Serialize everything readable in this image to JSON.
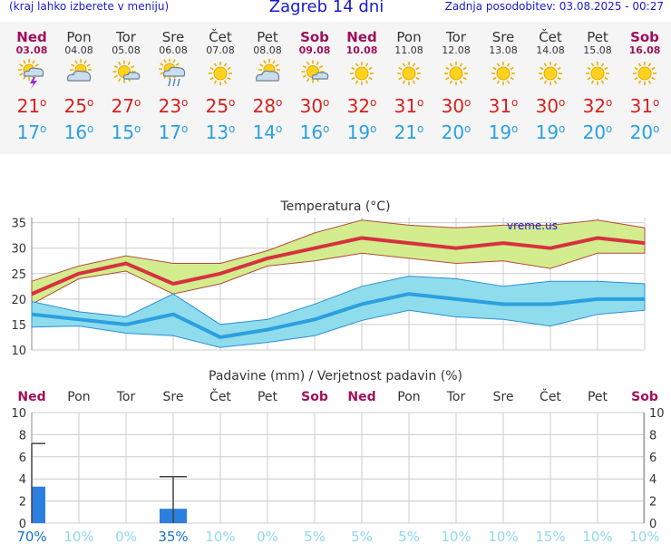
{
  "header": {
    "note": "(kraj lahko izberete v meniju)",
    "title": "Zagreb 14 dni",
    "updated": "Zadnja posodobitev: 03.08.2025 - 00:27"
  },
  "days": [
    {
      "name": "Ned",
      "date": "03.08",
      "weekend": true,
      "icon": "sun-cloud-thunder-icon",
      "tmax": "21",
      "tmin": "17"
    },
    {
      "name": "Pon",
      "date": "04.08",
      "weekend": false,
      "icon": "sun-cloud-icon",
      "tmax": "25",
      "tmin": "16"
    },
    {
      "name": "Tor",
      "date": "05.08",
      "weekend": false,
      "icon": "sun-small-cloud-icon",
      "tmax": "27",
      "tmin": "15"
    },
    {
      "name": "Sre",
      "date": "06.08",
      "weekend": false,
      "icon": "sun-cloud-rain-icon",
      "tmax": "23",
      "tmin": "17"
    },
    {
      "name": "Čet",
      "date": "07.08",
      "weekend": false,
      "icon": "sun-icon",
      "tmax": "25",
      "tmin": "13"
    },
    {
      "name": "Pet",
      "date": "08.08",
      "weekend": false,
      "icon": "sun-cloud-icon",
      "tmax": "28",
      "tmin": "14"
    },
    {
      "name": "Sob",
      "date": "09.08",
      "weekend": true,
      "icon": "sun-small-cloud-icon",
      "tmax": "30",
      "tmin": "16"
    },
    {
      "name": "Ned",
      "date": "10.08",
      "weekend": true,
      "icon": "sun-icon",
      "tmax": "32",
      "tmin": "19"
    },
    {
      "name": "Pon",
      "date": "11.08",
      "weekend": false,
      "icon": "sun-icon",
      "tmax": "31",
      "tmin": "21"
    },
    {
      "name": "Tor",
      "date": "12.08",
      "weekend": false,
      "icon": "sun-icon",
      "tmax": "30",
      "tmin": "20"
    },
    {
      "name": "Sre",
      "date": "13.08",
      "weekend": false,
      "icon": "sun-icon",
      "tmax": "31",
      "tmin": "19"
    },
    {
      "name": "Čet",
      "date": "14.08",
      "weekend": false,
      "icon": "sun-icon",
      "tmax": "30",
      "tmin": "19"
    },
    {
      "name": "Pet",
      "date": "15.08",
      "weekend": false,
      "icon": "sun-icon",
      "tmax": "32",
      "tmin": "20"
    },
    {
      "name": "Sob",
      "date": "16.08",
      "weekend": true,
      "icon": "sun-icon",
      "tmax": "31",
      "tmin": "20"
    }
  ],
  "colors": {
    "weekend": "#a0105a",
    "max_line": "#d6323f",
    "max_band": "#d3ec8e",
    "min_line": "#2b9fe0",
    "min_band": "#8fdcec",
    "precip_bar": "#2b7fe0",
    "prob_text": "#2aa0e0",
    "title_blue": "#1a1ad0"
  },
  "chart_data": [
    {
      "type": "line",
      "title": "Temperatura (°C)",
      "watermark": "vreme.us",
      "ylim": [
        10,
        36
      ],
      "yticks": [
        10,
        15,
        20,
        25,
        30,
        35
      ],
      "categories": [
        "03.08",
        "04.08",
        "05.08",
        "06.08",
        "07.08",
        "08.08",
        "09.08",
        "10.08",
        "11.08",
        "12.08",
        "13.08",
        "14.08",
        "15.08",
        "16.08"
      ],
      "series": [
        {
          "kind": "max",
          "values": [
            21,
            25,
            27,
            23,
            25,
            28,
            30,
            32,
            31,
            30,
            31,
            30,
            32,
            31
          ],
          "band_low": [
            19,
            24,
            25.5,
            21,
            23,
            26.5,
            27.5,
            29,
            28,
            27,
            27.5,
            26,
            29,
            29
          ],
          "band_high": [
            23.5,
            26.5,
            28.5,
            27,
            27,
            29.5,
            33,
            35.5,
            34.5,
            34,
            34.5,
            34.5,
            35.5,
            34
          ]
        },
        {
          "kind": "min",
          "values": [
            17,
            16,
            15,
            17,
            12.5,
            14,
            16,
            19,
            21,
            20,
            19,
            19,
            20,
            20
          ],
          "band_low": [
            14.5,
            14.7,
            13.3,
            12.8,
            10.5,
            11.5,
            12.8,
            15.8,
            17.8,
            16.5,
            16,
            14.7,
            17,
            17.8
          ],
          "band_high": [
            19.5,
            17.5,
            16.5,
            21,
            15,
            16,
            19,
            22.5,
            24.5,
            24,
            22.5,
            23.5,
            23.5,
            23
          ]
        }
      ]
    },
    {
      "type": "bar",
      "title": "Padavine (mm) / Verjetnost padavin (%)",
      "ylim": [
        0,
        10
      ],
      "yticks": [
        0,
        2,
        4,
        6,
        8,
        10
      ],
      "categories": [
        "Ned",
        "Pon",
        "Tor",
        "Sre",
        "Čet",
        "Pet",
        "Sob",
        "Ned",
        "Pon",
        "Tor",
        "Sre",
        "Čet",
        "Pet",
        "Sob"
      ],
      "weekend": [
        true,
        false,
        false,
        false,
        false,
        false,
        true,
        true,
        false,
        false,
        false,
        false,
        false,
        true
      ],
      "values": [
        3.3,
        0,
        0,
        1.3,
        0,
        0,
        0,
        0,
        0,
        0,
        0,
        0,
        0,
        0
      ],
      "upper": [
        7.2,
        null,
        null,
        4.2,
        null,
        null,
        null,
        null,
        null,
        null,
        null,
        null,
        null,
        null
      ],
      "probability": [
        "70%",
        "10%",
        "0%",
        "35%",
        "10%",
        "0%",
        "5%",
        "5%",
        "5%",
        "10%",
        "10%",
        "15%",
        "10%",
        "10%"
      ]
    }
  ]
}
